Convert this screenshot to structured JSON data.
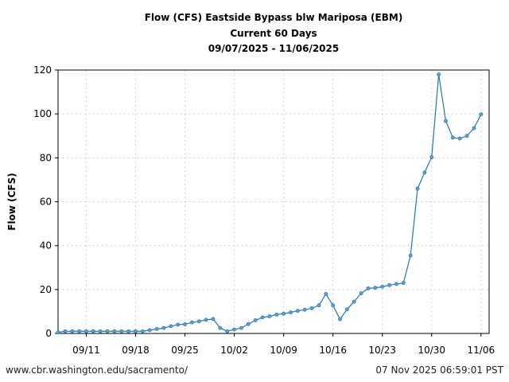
{
  "chart_data": {
    "type": "line",
    "title": [
      "Flow (CFS) Eastside Bypass blw Mariposa (EBM)",
      "Current 60 Days",
      "09/07/2025 - 11/06/2025"
    ],
    "xlabel": "",
    "ylabel": "Flow (CFS)",
    "ylim": [
      0,
      120
    ],
    "yticks": [
      0,
      20,
      40,
      60,
      80,
      100,
      120
    ],
    "xlim": [
      "2025-09-07",
      "2025-11-07"
    ],
    "xticks": [
      {
        "date": "2025-09-11",
        "label": "09/11"
      },
      {
        "date": "2025-09-18",
        "label": "09/18"
      },
      {
        "date": "2025-09-25",
        "label": "09/25"
      },
      {
        "date": "2025-10-02",
        "label": "10/02"
      },
      {
        "date": "2025-10-09",
        "label": "10/09"
      },
      {
        "date": "2025-10-16",
        "label": "10/16"
      },
      {
        "date": "2025-10-23",
        "label": "10/23"
      },
      {
        "date": "2025-10-30",
        "label": "10/30"
      },
      {
        "date": "2025-11-06",
        "label": "11/06"
      }
    ],
    "grid": true,
    "line_color": "#1f77b4",
    "start_date": "2025-09-07",
    "x_step": "1 day",
    "values": [
      0.5,
      1.0,
      1.0,
      1.0,
      1.0,
      1.0,
      1.0,
      1.0,
      1.0,
      1.0,
      1.0,
      1.0,
      1.0,
      1.5,
      2.0,
      2.5,
      3.3,
      4.0,
      4.2,
      5.0,
      5.5,
      6.2,
      6.6,
      2.5,
      1.0,
      1.8,
      2.5,
      4.3,
      6.0,
      7.3,
      7.8,
      8.6,
      9.0,
      9.6,
      10.3,
      10.8,
      11.5,
      12.8,
      18.0,
      12.8,
      6.5,
      11.0,
      14.5,
      18.3,
      20.5,
      20.8,
      21.3,
      22.0,
      22.5,
      23.0,
      35.5,
      66.0,
      73.3,
      80.3,
      118.0,
      96.8,
      89.2,
      88.8,
      90.0,
      93.5,
      99.8
    ]
  },
  "footer": {
    "source": "www.cbr.washington.edu/sacramento/",
    "timestamp": "07 Nov 2025 06:59:01 PST"
  }
}
